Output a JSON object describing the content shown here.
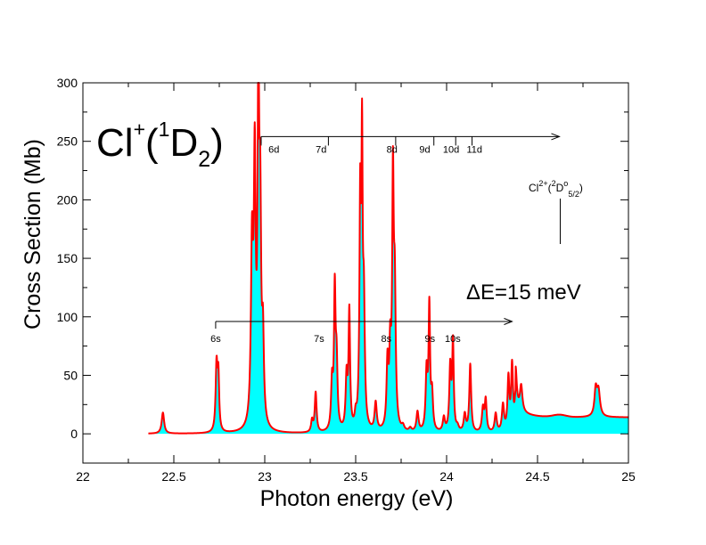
{
  "chart_data": {
    "type": "area",
    "xlabel": "Photon energy (eV)",
    "ylabel": "Cross Section (Mb)",
    "xlim": [
      22,
      25
    ],
    "ylim": [
      -25,
      300
    ],
    "x_ticks": [
      "22",
      "22.5",
      "23",
      "23.5",
      "24",
      "24.5",
      "25"
    ],
    "y_ticks": [
      "0",
      "50",
      "100",
      "150",
      "200",
      "250",
      "300"
    ],
    "colors": {
      "line": "#ff0000",
      "fill": "#00ffff",
      "axis": "#000000"
    },
    "title": {
      "base": "Cl",
      "charge": "+",
      "open": "(",
      "multiplicity": "1",
      "term": "D",
      "j": "2",
      "close": ")"
    },
    "resolution_label": "ΔE=15 meV",
    "threshold": {
      "ion": "Cl",
      "charge": "2+",
      "open": "(",
      "multiplicity": "2",
      "term": "D",
      "parity": "o",
      "j": "5/2",
      "close": ")",
      "energy": 24.62
    },
    "series_d": {
      "arrow_start": 22.98,
      "arrow_end": 24.62,
      "y": 254,
      "labels": [
        "6d",
        "7d",
        "8d",
        "9d",
        "10d",
        "11d"
      ],
      "positions": [
        23.02,
        23.28,
        23.67,
        23.85,
        23.98,
        24.11
      ],
      "ticks": [
        22.98,
        23.35,
        23.72,
        23.93,
        24.05,
        24.14
      ]
    },
    "series_s": {
      "arrow_start": 22.73,
      "arrow_end": 24.36,
      "y": 96,
      "labels": [
        "6s",
        "7s",
        "8s",
        "9s",
        "10s"
      ],
      "positions": [
        22.73,
        23.27,
        23.64,
        23.88,
        23.99
      ]
    },
    "peaks": [
      [
        22.44,
        18,
        0.008
      ],
      [
        22.735,
        57,
        0.006
      ],
      [
        22.745,
        45,
        0.005
      ],
      [
        22.93,
        150,
        0.007
      ],
      [
        22.945,
        215,
        0.006
      ],
      [
        22.965,
        280,
        0.005
      ],
      [
        22.975,
        170,
        0.006
      ],
      [
        22.99,
        70,
        0.006
      ],
      [
        23.26,
        10,
        0.006
      ],
      [
        23.28,
        34,
        0.006
      ],
      [
        23.37,
        40,
        0.006
      ],
      [
        23.385,
        115,
        0.005
      ],
      [
        23.395,
        55,
        0.006
      ],
      [
        23.45,
        45,
        0.006
      ],
      [
        23.465,
        100,
        0.005
      ],
      [
        23.5,
        10,
        0.006
      ],
      [
        23.525,
        190,
        0.005
      ],
      [
        23.535,
        220,
        0.004
      ],
      [
        23.545,
        100,
        0.006
      ],
      [
        23.61,
        24,
        0.007
      ],
      [
        23.675,
        55,
        0.006
      ],
      [
        23.69,
        62,
        0.006
      ],
      [
        23.705,
        205,
        0.005
      ],
      [
        23.715,
        110,
        0.006
      ],
      [
        23.76,
        4,
        0.008
      ],
      [
        23.8,
        3,
        0.008
      ],
      [
        23.84,
        17,
        0.007
      ],
      [
        23.89,
        50,
        0.006
      ],
      [
        23.905,
        105,
        0.005
      ],
      [
        23.92,
        30,
        0.006
      ],
      [
        23.985,
        12,
        0.007
      ],
      [
        24.02,
        55,
        0.006
      ],
      [
        24.035,
        75,
        0.005
      ],
      [
        24.06,
        4,
        0.008
      ],
      [
        24.1,
        15,
        0.007
      ],
      [
        24.13,
        58,
        0.006
      ],
      [
        24.2,
        20,
        0.007
      ],
      [
        24.215,
        27,
        0.006
      ],
      [
        24.27,
        16,
        0.007
      ],
      [
        24.31,
        23,
        0.007
      ],
      [
        24.34,
        45,
        0.006
      ],
      [
        24.36,
        55,
        0.006
      ],
      [
        24.38,
        30,
        0.007
      ],
      [
        24.41,
        22,
        0.008
      ],
      [
        24.82,
        22,
        0.008
      ],
      [
        24.835,
        22,
        0.01
      ]
    ]
  }
}
